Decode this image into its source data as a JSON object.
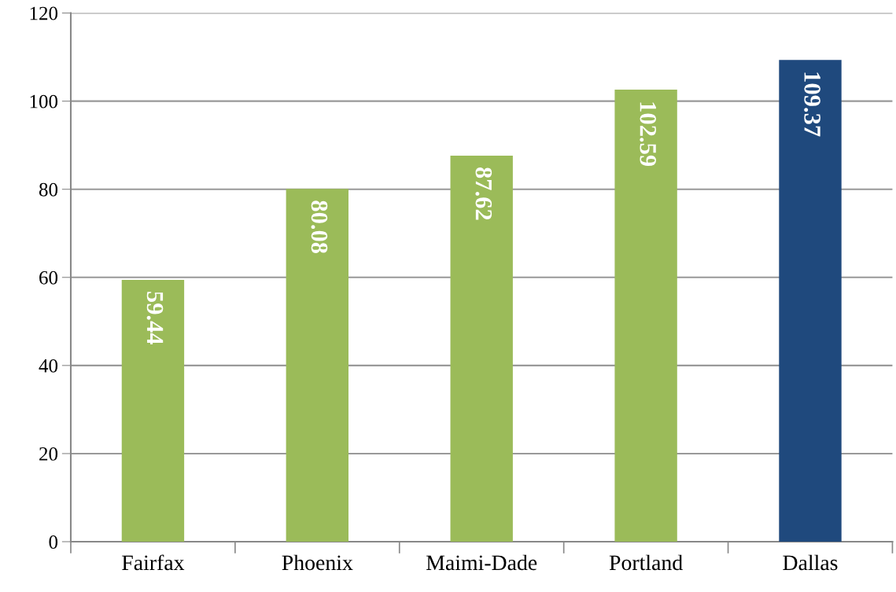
{
  "chart_data": {
    "type": "bar",
    "categories": [
      "Fairfax",
      "Phoenix",
      "Maimi-Dade",
      "Portland",
      "Dallas"
    ],
    "values": [
      59.44,
      80.08,
      87.62,
      102.59,
      109.37
    ],
    "colors": [
      "#9bbb59",
      "#9bbb59",
      "#9bbb59",
      "#9bbb59",
      "#1f497d"
    ],
    "ylim": [
      0,
      120
    ],
    "yticks": [
      0,
      20,
      40,
      60,
      80,
      100,
      120
    ],
    "grid": "y",
    "data_labels": true,
    "legend": false
  }
}
